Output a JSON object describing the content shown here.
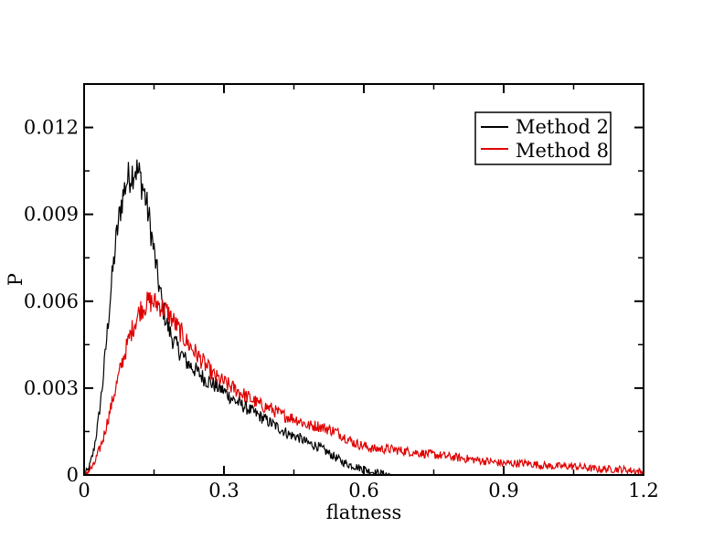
{
  "chart_data": {
    "type": "line",
    "xlabel": "flatness",
    "ylabel": "P",
    "xlim": [
      0,
      1.2
    ],
    "ylim": [
      0,
      0.0135
    ],
    "xticks": [
      "0",
      "0.3",
      "0.6",
      "0.9",
      "1.2"
    ],
    "xtick_values": [
      0,
      0.3,
      0.6,
      0.9,
      1.2
    ],
    "yticks": [
      "0",
      "0.003",
      "0.006",
      "0.009",
      "0.012"
    ],
    "ytick_values": [
      0,
      0.003,
      0.006,
      0.009,
      0.012
    ],
    "grid": false,
    "legend_position": "top-right",
    "series": [
      {
        "name": "Method 2",
        "color": "#000000",
        "x": [
          0,
          0.01,
          0.02,
          0.03,
          0.04,
          0.05,
          0.06,
          0.07,
          0.08,
          0.09,
          0.1,
          0.11,
          0.12,
          0.13,
          0.14,
          0.15,
          0.16,
          0.17,
          0.18,
          0.19,
          0.2,
          0.22,
          0.24,
          0.26,
          0.28,
          0.3,
          0.32,
          0.34,
          0.36,
          0.38,
          0.4,
          0.42,
          0.44,
          0.46,
          0.48,
          0.5,
          0.52,
          0.54,
          0.56,
          0.58,
          0.6,
          0.62,
          0.64,
          0.66
        ],
        "y": [
          0.0,
          0.0002,
          0.0008,
          0.0018,
          0.0032,
          0.005,
          0.0068,
          0.0083,
          0.0094,
          0.0101,
          0.0104,
          0.0106,
          0.0103,
          0.0097,
          0.0088,
          0.0077,
          0.0066,
          0.0057,
          0.0051,
          0.0047,
          0.0044,
          0.0039,
          0.0036,
          0.0033,
          0.0031,
          0.0029,
          0.0026,
          0.0024,
          0.0022,
          0.002,
          0.0018,
          0.0016,
          0.0014,
          0.0013,
          0.0011,
          0.001,
          0.0008,
          0.0006,
          0.0004,
          0.0003,
          0.0002,
          0.0001,
          5e-05,
          0.0
        ]
      },
      {
        "name": "Method 8",
        "color": "#e00000",
        "x": [
          0,
          0.02,
          0.04,
          0.06,
          0.08,
          0.1,
          0.12,
          0.14,
          0.16,
          0.18,
          0.2,
          0.22,
          0.24,
          0.26,
          0.28,
          0.3,
          0.32,
          0.34,
          0.36,
          0.38,
          0.4,
          0.42,
          0.44,
          0.46,
          0.48,
          0.5,
          0.52,
          0.54,
          0.56,
          0.58,
          0.6,
          0.62,
          0.65,
          0.7,
          0.75,
          0.8,
          0.85,
          0.9,
          0.95,
          1.0,
          1.05,
          1.1,
          1.15,
          1.2
        ],
        "y": [
          0.0,
          0.0003,
          0.0012,
          0.0025,
          0.0038,
          0.0049,
          0.0057,
          0.006,
          0.0059,
          0.0056,
          0.0051,
          0.0046,
          0.0042,
          0.0038,
          0.0034,
          0.0032,
          0.003,
          0.0028,
          0.0026,
          0.0024,
          0.0023,
          0.0021,
          0.002,
          0.0019,
          0.0017,
          0.0017,
          0.0016,
          0.0015,
          0.0013,
          0.0011,
          0.001,
          0.0009,
          0.0009,
          0.0008,
          0.0007,
          0.0006,
          0.0005,
          0.0004,
          0.0004,
          0.0003,
          0.0003,
          0.0002,
          0.0002,
          0.0001
        ]
      }
    ]
  }
}
